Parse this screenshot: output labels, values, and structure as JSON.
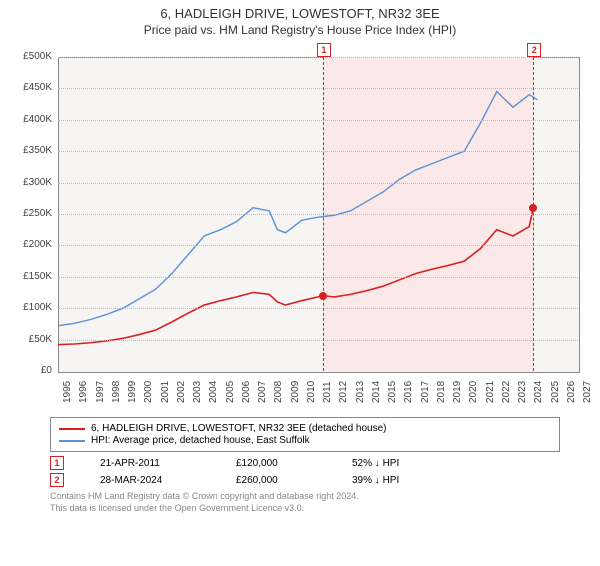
{
  "title": "6, HADLEIGH DRIVE, LOWESTOFT, NR32 3EE",
  "subtitle": "Price paid vs. HM Land Registry's House Price Index (HPI)",
  "chart": {
    "type": "line",
    "background_color": "#f6f5f3",
    "shaded_region_color": "#fbe9e9",
    "grid_color": "#bbbbbb",
    "border_color": "#888888",
    "ylim": [
      0,
      500000
    ],
    "ytick_step": 50000,
    "yticks": [
      "£0",
      "£50K",
      "£100K",
      "£150K",
      "£200K",
      "£250K",
      "£300K",
      "£350K",
      "£400K",
      "£450K",
      "£500K"
    ],
    "xlim": [
      1995,
      2027
    ],
    "xticks": [
      1995,
      1996,
      1997,
      1998,
      1999,
      2000,
      2001,
      2002,
      2003,
      2004,
      2005,
      2006,
      2007,
      2008,
      2009,
      2010,
      2011,
      2012,
      2013,
      2014,
      2015,
      2016,
      2017,
      2018,
      2019,
      2020,
      2021,
      2022,
      2023,
      2024,
      2025,
      2026,
      2027
    ],
    "shaded_x": [
      2011.3,
      2024.25
    ],
    "series": [
      {
        "name": "price_paid",
        "color": "#d62021",
        "line_width": 1.6,
        "x": [
          1995,
          1996,
          1997,
          1998,
          1999,
          2000,
          2001,
          2002,
          2003,
          2004,
          2005,
          2006,
          2007,
          2008,
          2008.5,
          2009,
          2010,
          2011,
          2011.3,
          2012,
          2013,
          2014,
          2015,
          2016,
          2017,
          2018,
          2019,
          2020,
          2021,
          2022,
          2023,
          2024,
          2024.25
        ],
        "y": [
          42000,
          43000,
          45000,
          48000,
          52000,
          58000,
          65000,
          78000,
          92000,
          105000,
          112000,
          118000,
          125000,
          122000,
          110000,
          105000,
          112000,
          118000,
          120000,
          118000,
          122000,
          128000,
          135000,
          145000,
          155000,
          162000,
          168000,
          175000,
          195000,
          225000,
          215000,
          230000,
          260000
        ]
      },
      {
        "name": "hpi",
        "color": "#5b8fd6",
        "line_width": 1.4,
        "x": [
          1995,
          1996,
          1997,
          1998,
          1999,
          2000,
          2001,
          2002,
          2003,
          2004,
          2005,
          2006,
          2007,
          2008,
          2008.5,
          2009,
          2010,
          2011,
          2012,
          2013,
          2014,
          2015,
          2016,
          2017,
          2018,
          2019,
          2020,
          2021,
          2022,
          2023,
          2024,
          2024.5
        ],
        "y": [
          72000,
          76000,
          82000,
          90000,
          100000,
          115000,
          130000,
          155000,
          185000,
          215000,
          225000,
          238000,
          260000,
          255000,
          225000,
          220000,
          240000,
          245000,
          248000,
          255000,
          270000,
          285000,
          305000,
          320000,
          330000,
          340000,
          350000,
          395000,
          445000,
          420000,
          440000,
          432000
        ]
      }
    ],
    "points": [
      {
        "x": 2011.3,
        "y": 120000,
        "color": "#d62021"
      },
      {
        "x": 2024.25,
        "y": 260000,
        "color": "#d62021"
      }
    ],
    "markers": [
      {
        "label": "1",
        "x": 2011.3,
        "color": "#d62021"
      },
      {
        "label": "2",
        "x": 2024.25,
        "color": "#d62021"
      }
    ]
  },
  "legend": {
    "items": [
      {
        "color": "#d62021",
        "label": "6, HADLEIGH DRIVE, LOWESTOFT, NR32 3EE (detached house)"
      },
      {
        "color": "#5b8fd6",
        "label": "HPI: Average price, detached house, East Suffolk"
      }
    ]
  },
  "events": [
    {
      "label": "1",
      "color": "#d62021",
      "date": "21-APR-2011",
      "price": "£120,000",
      "delta": "52% ↓ HPI"
    },
    {
      "label": "2",
      "color": "#d62021",
      "date": "28-MAR-2024",
      "price": "£260,000",
      "delta": "39% ↓ HPI"
    }
  ],
  "footer_line1": "Contains HM Land Registry data © Crown copyright and database right 2024.",
  "footer_line2": "This data is licensed under the Open Government Licence v3.0."
}
